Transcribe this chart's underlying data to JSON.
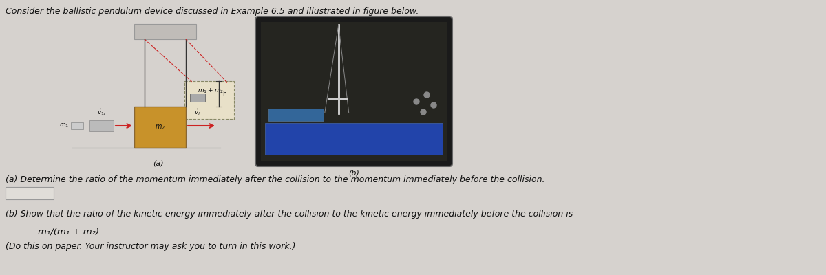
{
  "title_text": "Consider the ballistic pendulum device discussed in Example 6.5 and illustrated in figure below.",
  "part_a_label": "(a)",
  "part_b_label": "(b)",
  "question_a": "(a) Determine the ratio of the momentum immediately after the collision to the momentum immediately before the collision.",
  "question_b": "(b) Show that the ratio of the kinetic energy immediately after the collision to the kinetic energy immediately before the collision is",
  "formula": "m₁/(m₁ + m₂)",
  "note": "(Do this on paper. Your instructor may ask you to turn in this work.)",
  "bg_color": "#d6d2ce",
  "text_color": "#111111",
  "fig_width": 12.0,
  "fig_height": 4.0,
  "dpi": 100
}
